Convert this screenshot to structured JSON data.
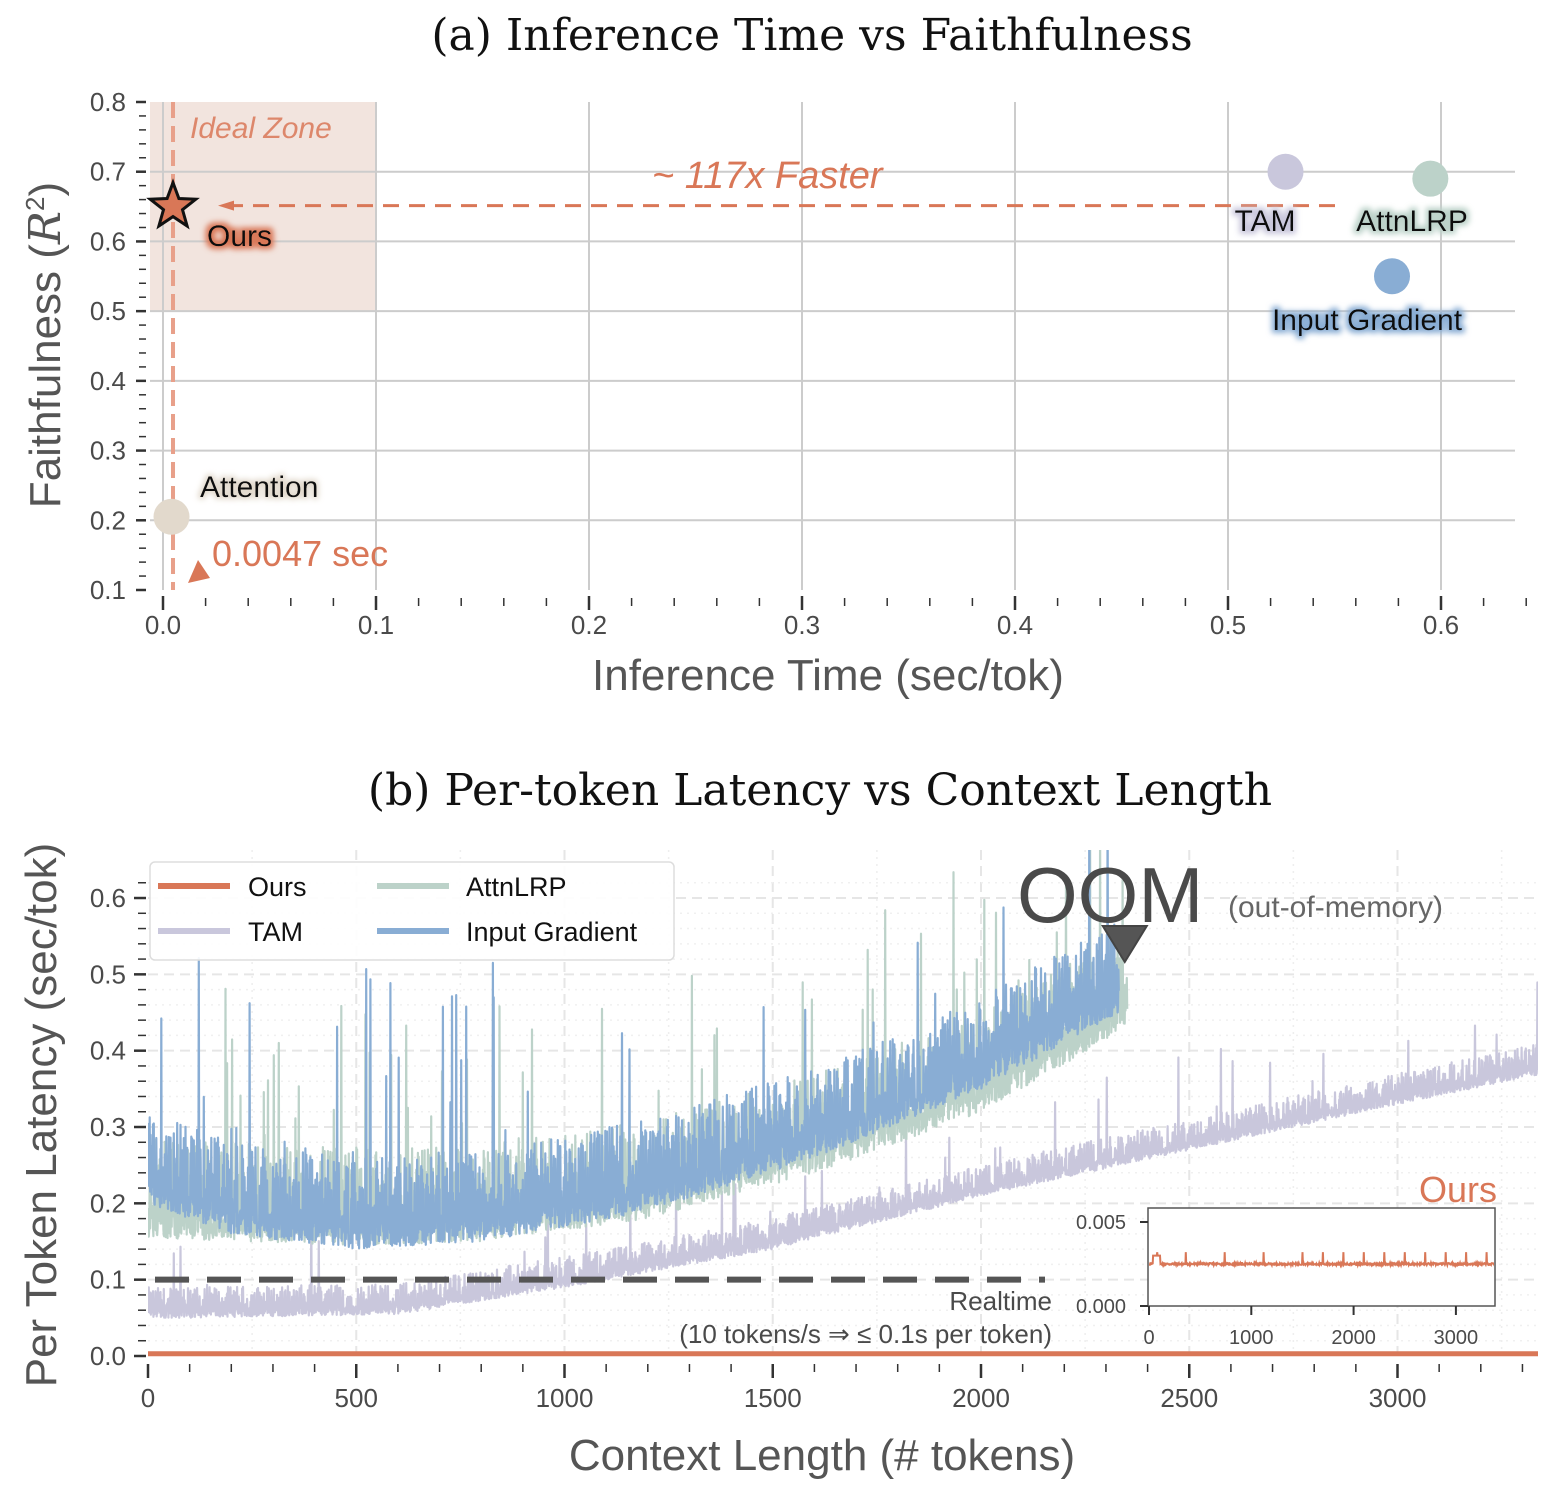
{
  "colors": {
    "ours": "#d97757",
    "ours_light": "#e8a08a",
    "tam": "#c9c7dc",
    "attnlrp": "#bcd2c9",
    "input_gradient": "#89add4",
    "attention": "#e2d9cc",
    "ideal_zone": "#f2e4de",
    "oom_marker": "#555555",
    "realtime_line": "#555555",
    "grid": "#cccccc",
    "text_dark": "#4a4a4a"
  },
  "chart_data": [
    {
      "id": "panel-a",
      "type": "scatter",
      "title": "(a) Inference Time vs Faithfulness",
      "xlabel": "Inference Time (sec/tok)",
      "ylabel": "Faithfulness (R²)",
      "xlim": [
        -0.007,
        0.65
      ],
      "ylim": [
        0.1,
        0.8
      ],
      "xticks": [
        0.0,
        0.1,
        0.2,
        0.3,
        0.4,
        0.5,
        0.6
      ],
      "xtick_labels": [
        "0.0",
        "0.1",
        "0.2",
        "0.3",
        "0.4",
        "0.5",
        "0.6"
      ],
      "yticks": [
        0.1,
        0.2,
        0.3,
        0.4,
        0.5,
        0.6,
        0.7,
        0.8
      ],
      "ytick_labels": [
        "0.1",
        "0.2",
        "0.3",
        "0.4",
        "0.5",
        "0.6",
        "0.7",
        "0.8"
      ],
      "grid": true,
      "points": [
        {
          "name": "Ours",
          "x": 0.0047,
          "y": 0.65,
          "marker": "star"
        },
        {
          "name": "Attention",
          "x": 0.004,
          "y": 0.205,
          "marker": "circle"
        },
        {
          "name": "TAM",
          "x": 0.527,
          "y": 0.7,
          "marker": "circle"
        },
        {
          "name": "AttnLRP",
          "x": 0.595,
          "y": 0.69,
          "marker": "circle"
        },
        {
          "name": "Input Gradient",
          "x": 0.577,
          "y": 0.55,
          "marker": "circle"
        }
      ],
      "ideal_zone": {
        "label": "Ideal Zone",
        "x_range": [
          -0.007,
          0.1
        ],
        "y_range": [
          0.5,
          0.8
        ]
      },
      "annotations": {
        "speedup": "~ 117x Faster",
        "ours_time": "0.0047 sec"
      }
    },
    {
      "id": "panel-b",
      "type": "line",
      "title": "(b) Per-token Latency vs Context Length",
      "xlabel": "Context Length (# tokens)",
      "ylabel": "Per Token Latency (sec/tok)",
      "xlim": [
        0,
        3350
      ],
      "ylim": [
        0,
        0.64
      ],
      "xticks": [
        0,
        500,
        1000,
        1500,
        2000,
        2500,
        3000
      ],
      "xtick_labels": [
        "0",
        "500",
        "1000",
        "1500",
        "2000",
        "2500",
        "3000"
      ],
      "yticks": [
        0.0,
        0.1,
        0.2,
        0.3,
        0.4,
        0.5,
        0.6
      ],
      "ytick_labels": [
        "0.0",
        "0.1",
        "0.2",
        "0.3",
        "0.4",
        "0.5",
        "0.6"
      ],
      "grid": true,
      "legend": {
        "placement": "top-left",
        "entries": [
          "Ours",
          "TAM",
          "AttnLRP",
          "Input Gradient"
        ]
      },
      "series": [
        {
          "name": "Ours",
          "x_end": 3350,
          "baseline": [
            [
              0,
              0.0025
            ],
            [
              3350,
              0.0025
            ]
          ],
          "spread": 0.0
        },
        {
          "name": "TAM",
          "x_end": 3350,
          "baseline": [
            [
              0,
              0.05
            ],
            [
              100,
              0.05
            ],
            [
              600,
              0.055
            ],
            [
              1000,
              0.09
            ],
            [
              1500,
              0.14
            ],
            [
              2000,
              0.21
            ],
            [
              2500,
              0.27
            ],
            [
              3000,
              0.33
            ],
            [
              3350,
              0.37
            ]
          ],
          "spread": 0.04
        },
        {
          "name": "AttnLRP",
          "x_end": 2350,
          "baseline": [
            [
              0,
              0.155
            ],
            [
              500,
              0.145
            ],
            [
              800,
              0.15
            ],
            [
              1200,
              0.18
            ],
            [
              1600,
              0.24
            ],
            [
              2000,
              0.32
            ],
            [
              2350,
              0.43
            ]
          ],
          "spread": 0.13
        },
        {
          "name": "Input Gradient",
          "x_end": 2330,
          "baseline": [
            [
              0,
              0.2
            ],
            [
              200,
              0.16
            ],
            [
              500,
              0.14
            ],
            [
              800,
              0.15
            ],
            [
              1200,
              0.19
            ],
            [
              1600,
              0.26
            ],
            [
              2000,
              0.35
            ],
            [
              2330,
              0.45
            ]
          ],
          "spread": 0.12
        }
      ],
      "realtime_threshold": {
        "y": 0.1,
        "label": "Realtime",
        "sublabel": "(10 tokens/s ⇒ ≤ 0.1s per token)"
      },
      "oom": {
        "x": 2350,
        "label": "OOM",
        "sublabel": "(out-of-memory)"
      },
      "inset": {
        "title": "Ours",
        "xlim": [
          0,
          3380
        ],
        "ylim": [
          0,
          0.0058
        ],
        "xticks": [
          0,
          1000,
          2000,
          3000
        ],
        "xtick_labels": [
          "0",
          "1000",
          "2000",
          "3000"
        ],
        "yticks": [
          0.0,
          0.005
        ],
        "ytick_labels": [
          "0.000",
          "0.005"
        ],
        "baseline": 0.0025,
        "spikes_at": [
          80,
          360,
          740,
          1120,
          1500,
          1700,
          1900,
          2100,
          2300,
          2500,
          2700,
          2900,
          3100,
          3300
        ],
        "spike_height": 0.0032
      }
    }
  ]
}
